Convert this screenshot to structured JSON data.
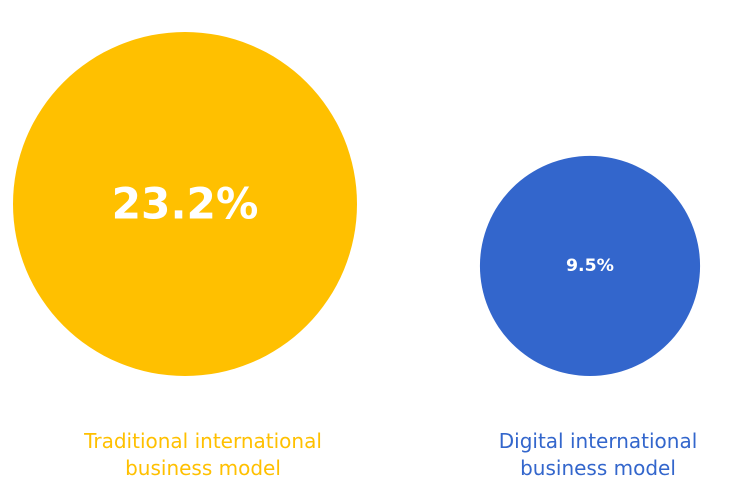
{
  "chart_data": {
    "type": "bubble",
    "categories": [
      "Traditional international business model",
      "Digital international business model"
    ],
    "values": [
      23.2,
      9.5
    ],
    "value_labels": [
      "23.2%",
      "9.5%"
    ],
    "colors": [
      "#FFC000",
      "#3366CC"
    ]
  }
}
